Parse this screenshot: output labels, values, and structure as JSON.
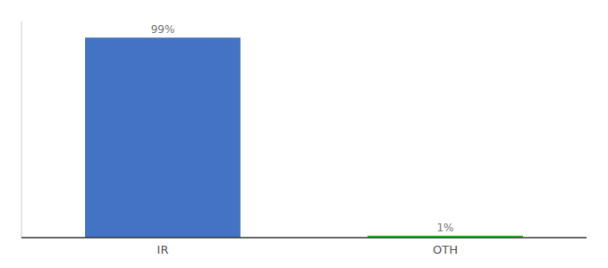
{
  "chart_data": {
    "type": "bar",
    "categories": [
      "IR",
      "OTH"
    ],
    "values": [
      99,
      1
    ],
    "value_labels": [
      "99%",
      "1%"
    ],
    "colors": [
      "#4472c4",
      "#21c421"
    ],
    "ylim": [
      0,
      107
    ],
    "data_labels": true,
    "tick_labels": "x",
    "grid": false
  }
}
